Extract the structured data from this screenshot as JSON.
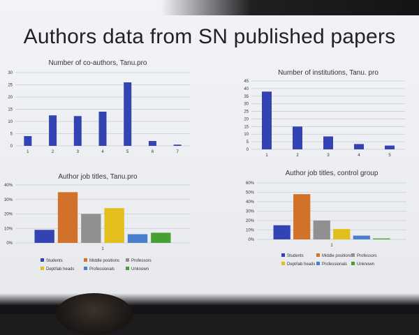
{
  "slide": {
    "title": "Authors data from SN published papers"
  },
  "chart_data": [
    {
      "type": "bar",
      "title": "Number of co-authors, Tanu.pro",
      "categories": [
        "1",
        "2",
        "3",
        "4",
        "5",
        "6",
        "7"
      ],
      "values": [
        4,
        12.5,
        12.2,
        14,
        26,
        2,
        0.5
      ],
      "ylim": [
        0,
        30
      ],
      "yticks": [
        "0",
        "5",
        "10",
        "15",
        "20",
        "25",
        "30"
      ],
      "color": "#3343b3",
      "grid": true
    },
    {
      "type": "bar",
      "title": "Number of institutions, Tanu. pro",
      "categories": [
        "1",
        "2",
        "3",
        "4",
        "5"
      ],
      "values": [
        38,
        15,
        8.5,
        3.5,
        2.5
      ],
      "ylim": [
        0,
        45
      ],
      "yticks": [
        "0",
        "5",
        "10",
        "15",
        "20",
        "25",
        "30",
        "35",
        "40",
        "45"
      ],
      "color": "#3343b3",
      "grid": true
    },
    {
      "type": "bar",
      "title": "Author job titles, Tanu.pro",
      "categories": [
        "1"
      ],
      "series": [
        {
          "name": "Students",
          "values": [
            9
          ],
          "color": "#3343b3"
        },
        {
          "name": "Middle positions",
          "values": [
            35
          ],
          "color": "#d2712a"
        },
        {
          "name": "Professors",
          "values": [
            20
          ],
          "color": "#909090"
        },
        {
          "name": "Dept/lab heads",
          "values": [
            24
          ],
          "color": "#e3bf1d"
        },
        {
          "name": "Professionals",
          "values": [
            6
          ],
          "color": "#4a7fce"
        },
        {
          "name": "Unknown",
          "values": [
            7
          ],
          "color": "#46a032"
        }
      ],
      "ylim": [
        0,
        40
      ],
      "yticks": [
        "0%",
        "10%",
        "20%",
        "30%",
        "40%"
      ],
      "legend": "bottom",
      "grid": true
    },
    {
      "type": "bar",
      "title": "Author job titles, control group",
      "categories": [
        "1"
      ],
      "series": [
        {
          "name": "Students",
          "values": [
            15
          ],
          "color": "#3343b3"
        },
        {
          "name": "Middle positions",
          "values": [
            48
          ],
          "color": "#d2712a"
        },
        {
          "name": "Professors",
          "values": [
            20
          ],
          "color": "#909090"
        },
        {
          "name": "Dept/lab heads",
          "values": [
            11
          ],
          "color": "#e3bf1d"
        },
        {
          "name": "Professionals",
          "values": [
            4
          ],
          "color": "#4a7fce"
        },
        {
          "name": "Unknown",
          "values": [
            1
          ],
          "color": "#46a032"
        }
      ],
      "ylim": [
        0,
        60
      ],
      "yticks": [
        "0%",
        "10%",
        "20%",
        "30%",
        "40%",
        "50%",
        "60%"
      ],
      "legend": "bottom",
      "grid": true
    }
  ]
}
